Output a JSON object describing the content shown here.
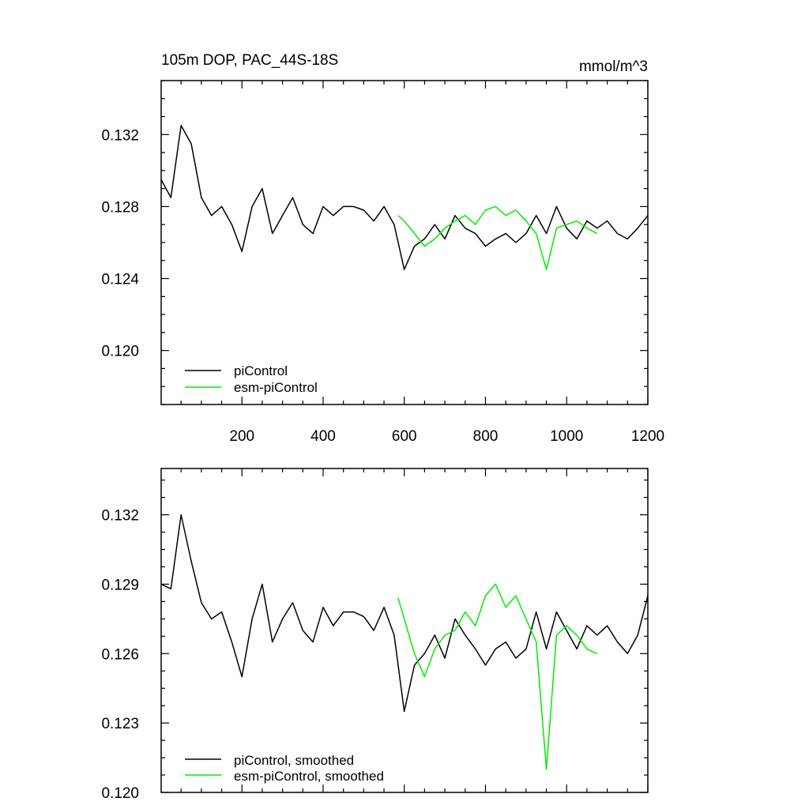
{
  "chart_data": [
    {
      "type": "line",
      "title_left": "105m DOP, PAC_44S-18S",
      "title_right": "mmol/m^3",
      "xlim": [
        1,
        1200
      ],
      "ylim": [
        0.117,
        0.135
      ],
      "xticks": [
        200,
        400,
        600,
        800,
        1000,
        1200
      ],
      "yticks": [
        0.12,
        0.124,
        0.128,
        0.132
      ],
      "ytick_labels": [
        "0.120",
        "0.124",
        "0.128",
        "0.132"
      ],
      "legend_placement": "bottom-left",
      "grid": false,
      "series": [
        {
          "name": "piControl",
          "color": "#000000",
          "x": [
            1,
            25,
            50,
            75,
            100,
            125,
            150,
            175,
            200,
            225,
            250,
            275,
            300,
            325,
            350,
            375,
            400,
            425,
            450,
            475,
            500,
            525,
            550,
            575,
            600,
            625,
            650,
            675,
            700,
            725,
            750,
            775,
            800,
            825,
            850,
            875,
            900,
            925,
            950,
            975,
            1000,
            1025,
            1050,
            1075,
            1100,
            1125,
            1150,
            1175,
            1200
          ],
          "values": [
            0.1295,
            0.1285,
            0.1325,
            0.1315,
            0.1285,
            0.1275,
            0.128,
            0.127,
            0.1255,
            0.128,
            0.129,
            0.1265,
            0.1275,
            0.1285,
            0.127,
            0.1265,
            0.128,
            0.1275,
            0.128,
            0.128,
            0.1278,
            0.1272,
            0.128,
            0.127,
            0.1245,
            0.1258,
            0.1262,
            0.127,
            0.1262,
            0.1275,
            0.1268,
            0.1265,
            0.1258,
            0.1262,
            0.1265,
            0.126,
            0.1265,
            0.1275,
            0.1265,
            0.128,
            0.1268,
            0.1262,
            0.1272,
            0.1268,
            0.1272,
            0.1265,
            0.1262,
            0.1268,
            0.1275
          ]
        },
        {
          "name": "esm-piControl",
          "color": "#00ee00",
          "x": [
            585,
            600,
            625,
            650,
            675,
            700,
            725,
            750,
            775,
            800,
            825,
            850,
            875,
            900,
            925,
            950,
            975,
            1000,
            1025,
            1050,
            1075
          ],
          "values": [
            0.1275,
            0.1272,
            0.1265,
            0.1258,
            0.1262,
            0.1268,
            0.1272,
            0.1275,
            0.127,
            0.1278,
            0.128,
            0.1275,
            0.1278,
            0.1272,
            0.1265,
            0.1245,
            0.1268,
            0.127,
            0.1272,
            0.1268,
            0.1265
          ]
        }
      ]
    },
    {
      "type": "line",
      "xlim": [
        1,
        1200
      ],
      "ylim": [
        0.12,
        0.134
      ],
      "xticks": [
        200,
        400,
        600,
        800,
        1000,
        1200
      ],
      "yticks": [
        0.12,
        0.123,
        0.126,
        0.129,
        0.132
      ],
      "ytick_labels": [
        "0.120",
        "0.123",
        "0.126",
        "0.129",
        "0.132"
      ],
      "legend_placement": "bottom-left",
      "grid": false,
      "series": [
        {
          "name": "piControl, smoothed",
          "color": "#000000",
          "x": [
            1,
            25,
            50,
            75,
            100,
            125,
            150,
            175,
            200,
            225,
            250,
            275,
            300,
            325,
            350,
            375,
            400,
            425,
            450,
            475,
            500,
            525,
            550,
            575,
            600,
            625,
            650,
            675,
            700,
            725,
            750,
            775,
            800,
            825,
            850,
            875,
            900,
            925,
            950,
            975,
            1000,
            1025,
            1050,
            1075,
            1100,
            1125,
            1150,
            1175,
            1200
          ],
          "values": [
            0.129,
            0.1288,
            0.132,
            0.13,
            0.1282,
            0.1275,
            0.1278,
            0.1265,
            0.125,
            0.1275,
            0.129,
            0.1265,
            0.1275,
            0.1282,
            0.127,
            0.1265,
            0.128,
            0.1272,
            0.1278,
            0.1278,
            0.1276,
            0.127,
            0.128,
            0.1268,
            0.1235,
            0.1255,
            0.126,
            0.1268,
            0.1258,
            0.1275,
            0.1268,
            0.1262,
            0.1255,
            0.1262,
            0.1265,
            0.1258,
            0.1262,
            0.1278,
            0.1262,
            0.1278,
            0.127,
            0.1262,
            0.1272,
            0.1268,
            0.1272,
            0.1265,
            0.126,
            0.1268,
            0.1285
          ]
        },
        {
          "name": "esm-piControl, smoothed",
          "color": "#00ee00",
          "x": [
            585,
            600,
            625,
            650,
            675,
            700,
            725,
            750,
            775,
            800,
            825,
            850,
            875,
            900,
            925,
            950,
            975,
            1000,
            1025,
            1050,
            1075
          ],
          "values": [
            0.1284,
            0.1275,
            0.126,
            0.125,
            0.1262,
            0.1268,
            0.127,
            0.1278,
            0.1272,
            0.1285,
            0.129,
            0.128,
            0.1285,
            0.1275,
            0.1265,
            0.121,
            0.1268,
            0.1272,
            0.1268,
            0.1262,
            0.126
          ]
        }
      ]
    }
  ]
}
